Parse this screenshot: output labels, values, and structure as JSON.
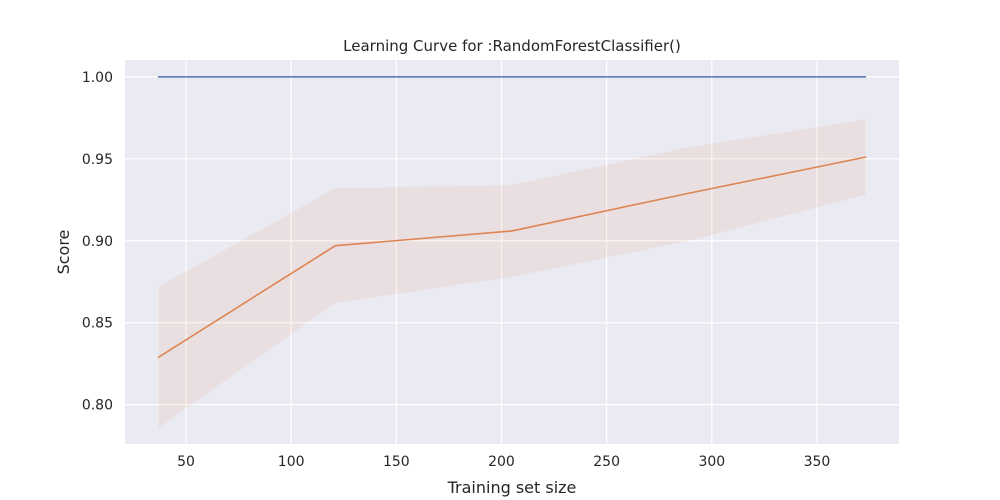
{
  "chart_data": {
    "type": "line",
    "title": "Learning Curve for :RandomForestClassifier()",
    "xlabel": "Training set size",
    "ylabel": "Score",
    "xlim": [
      21,
      389
    ],
    "ylim": [
      0.776,
      1.0103
    ],
    "grid": true,
    "xticks": [
      50,
      100,
      150,
      200,
      250,
      300,
      350
    ],
    "xtick_labels": [
      "50",
      "100",
      "150",
      "200",
      "250",
      "300",
      "350"
    ],
    "yticks": [
      0.8,
      0.85,
      0.9,
      0.95,
      1.0
    ],
    "ytick_labels": [
      "0.80",
      "0.85",
      "0.90",
      "0.95",
      "1.00"
    ],
    "x": [
      37,
      121,
      205,
      289,
      373
    ],
    "series": [
      {
        "color": "#4c72b0",
        "values": [
          1.0,
          1.0,
          1.0,
          1.0,
          1.0
        ],
        "lower": [
          1.0,
          1.0,
          1.0,
          1.0,
          1.0
        ],
        "upper": [
          1.0,
          1.0,
          1.0,
          1.0,
          1.0
        ]
      },
      {
        "color": "#dd8452",
        "values": [
          0.829,
          0.897,
          0.906,
          0.929,
          0.951
        ],
        "lower": [
          0.786,
          0.862,
          0.878,
          0.9,
          0.928
        ],
        "upper": [
          0.872,
          0.932,
          0.934,
          0.957,
          0.974
        ]
      }
    ],
    "colors": {
      "plot_background": "#eaeaf2",
      "grid": "#ffffff",
      "band_fill": "#dd8452"
    }
  }
}
